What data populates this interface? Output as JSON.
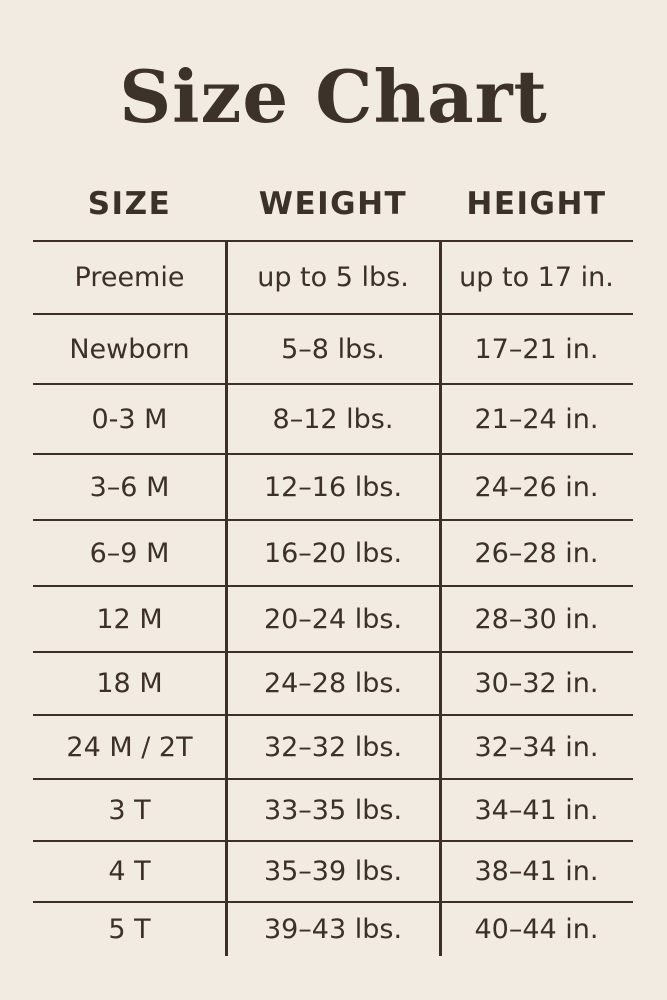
{
  "title": "Size Chart",
  "columns": [
    "SIZE",
    "WEIGHT",
    "HEIGHT"
  ],
  "rows": [
    [
      "Preemie",
      "up to 5 lbs.",
      "up to 17 in."
    ],
    [
      "Newborn",
      "5–8 lbs.",
      "17–21 in."
    ],
    [
      "0-3 M",
      "8–12 lbs.",
      "21–24 in."
    ],
    [
      "3–6 M",
      "12–16 lbs.",
      "24–26 in."
    ],
    [
      "6–9 M",
      "16–20 lbs.",
      "26–28 in."
    ],
    [
      "12 M",
      "20–24 lbs.",
      "28–30 in."
    ],
    [
      "18 M",
      "24–28 lbs.",
      "30–32 in."
    ],
    [
      "24 M / 2T",
      "32–32 lbs.",
      "32–34 in."
    ],
    [
      "3 T",
      "33–35 lbs.",
      "34–41 in."
    ],
    [
      "4 T",
      "35–39 lbs.",
      "38–41 in."
    ],
    [
      "5 T",
      "39–43 lbs.",
      "40–44 in."
    ]
  ],
  "colors": {
    "background": "#f1ebe2",
    "text": "#3b3128"
  }
}
